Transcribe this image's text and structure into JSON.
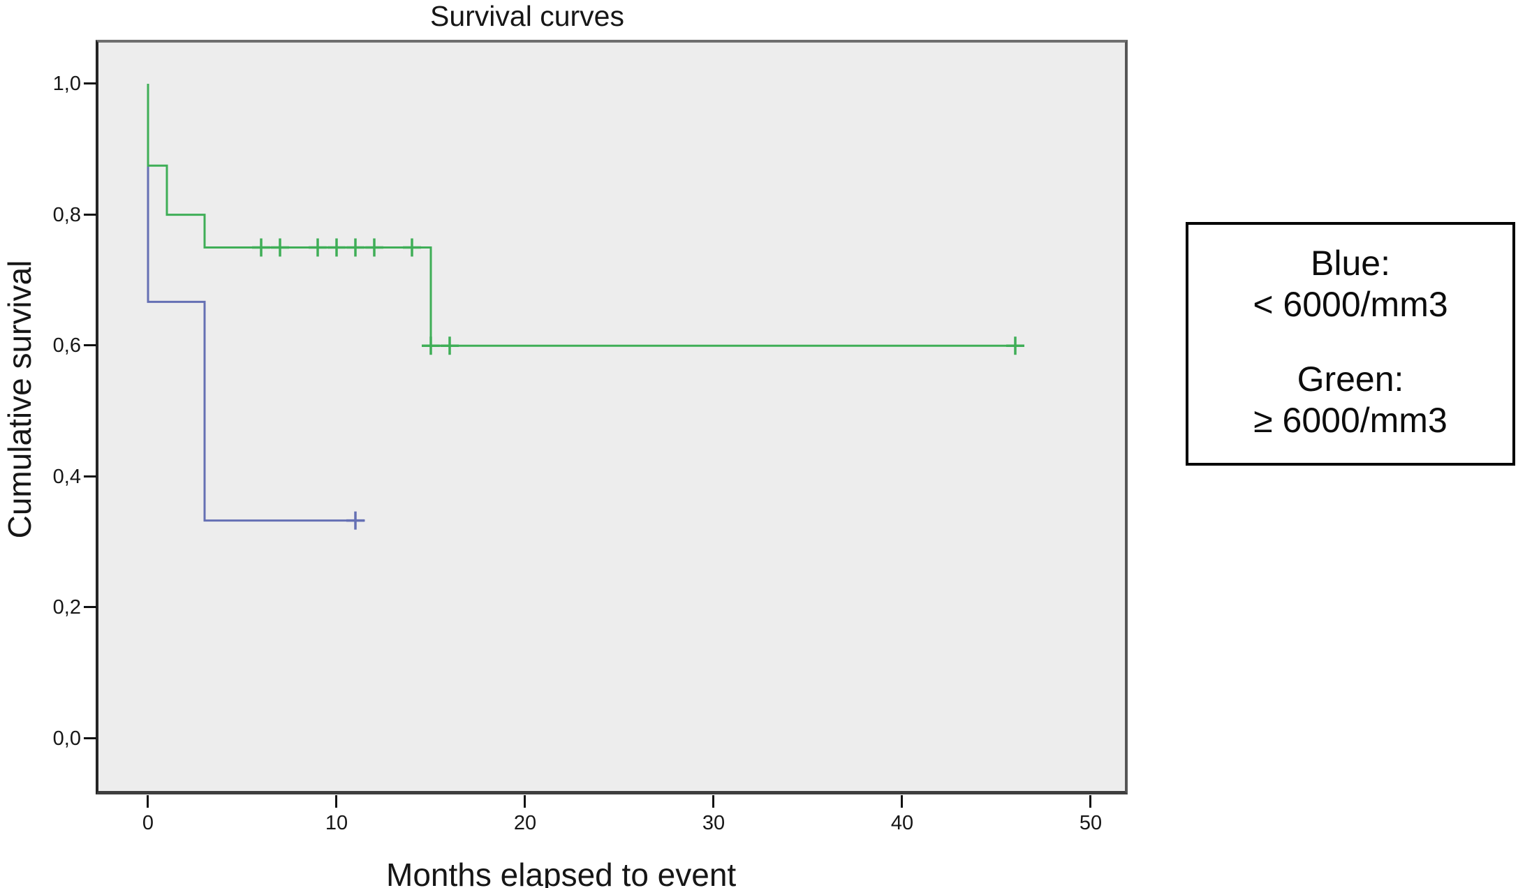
{
  "figure": {
    "title": "Survival curves",
    "xlabel": "Months elapsed to event",
    "ylabel": "Cumulative survival"
  },
  "legend": {
    "lines": [
      "Blue:",
      "< 6000/mm3",
      "Green:",
      "≥ 6000/mm3"
    ]
  },
  "chart_data": {
    "type": "line",
    "subtype": "kaplan-meier-step",
    "title": "Survival curves",
    "xlabel": "Months elapsed to event",
    "ylabel": "Cumulative survival",
    "xlim": [
      -2.8,
      52
    ],
    "ylim": [
      -0.085,
      1.065
    ],
    "x_ticks": [
      0,
      10,
      20,
      30,
      40,
      50
    ],
    "y_ticks": [
      {
        "v": 0.0,
        "label": "0,0"
      },
      {
        "v": 0.2,
        "label": "0,2"
      },
      {
        "v": 0.4,
        "label": "0,4"
      },
      {
        "v": 0.6,
        "label": "0,6"
      },
      {
        "v": 0.8,
        "label": "0,8"
      },
      {
        "v": 1.0,
        "label": "1,0"
      }
    ],
    "grid": false,
    "legend_position": "right-outside",
    "plot_bg": "#ededed",
    "series": [
      {
        "id": "blue",
        "name": "Blue: < 6000/mm3",
        "color": "#6570b4",
        "steps": [
          [
            0,
            1.0
          ],
          [
            0,
            0.667
          ],
          [
            3,
            0.667
          ],
          [
            3,
            0.333
          ],
          [
            11.5,
            0.333
          ]
        ],
        "censor_marks": [
          [
            11,
            0.333
          ]
        ]
      },
      {
        "id": "green",
        "name": "Green: ≥ 6000/mm3",
        "color": "#3fae57",
        "steps": [
          [
            0,
            1.0
          ],
          [
            0,
            0.875
          ],
          [
            1,
            0.875
          ],
          [
            1,
            0.8
          ],
          [
            3,
            0.8
          ],
          [
            3,
            0.75
          ],
          [
            15,
            0.75
          ],
          [
            15,
            0.6
          ],
          [
            46.2,
            0.6
          ]
        ],
        "censor_marks": [
          [
            6,
            0.75
          ],
          [
            7,
            0.75
          ],
          [
            9,
            0.75
          ],
          [
            10,
            0.75
          ],
          [
            11,
            0.75
          ],
          [
            12,
            0.75
          ],
          [
            14,
            0.75
          ],
          [
            15,
            0.6
          ],
          [
            16,
            0.6
          ],
          [
            46,
            0.6
          ]
        ]
      }
    ]
  }
}
